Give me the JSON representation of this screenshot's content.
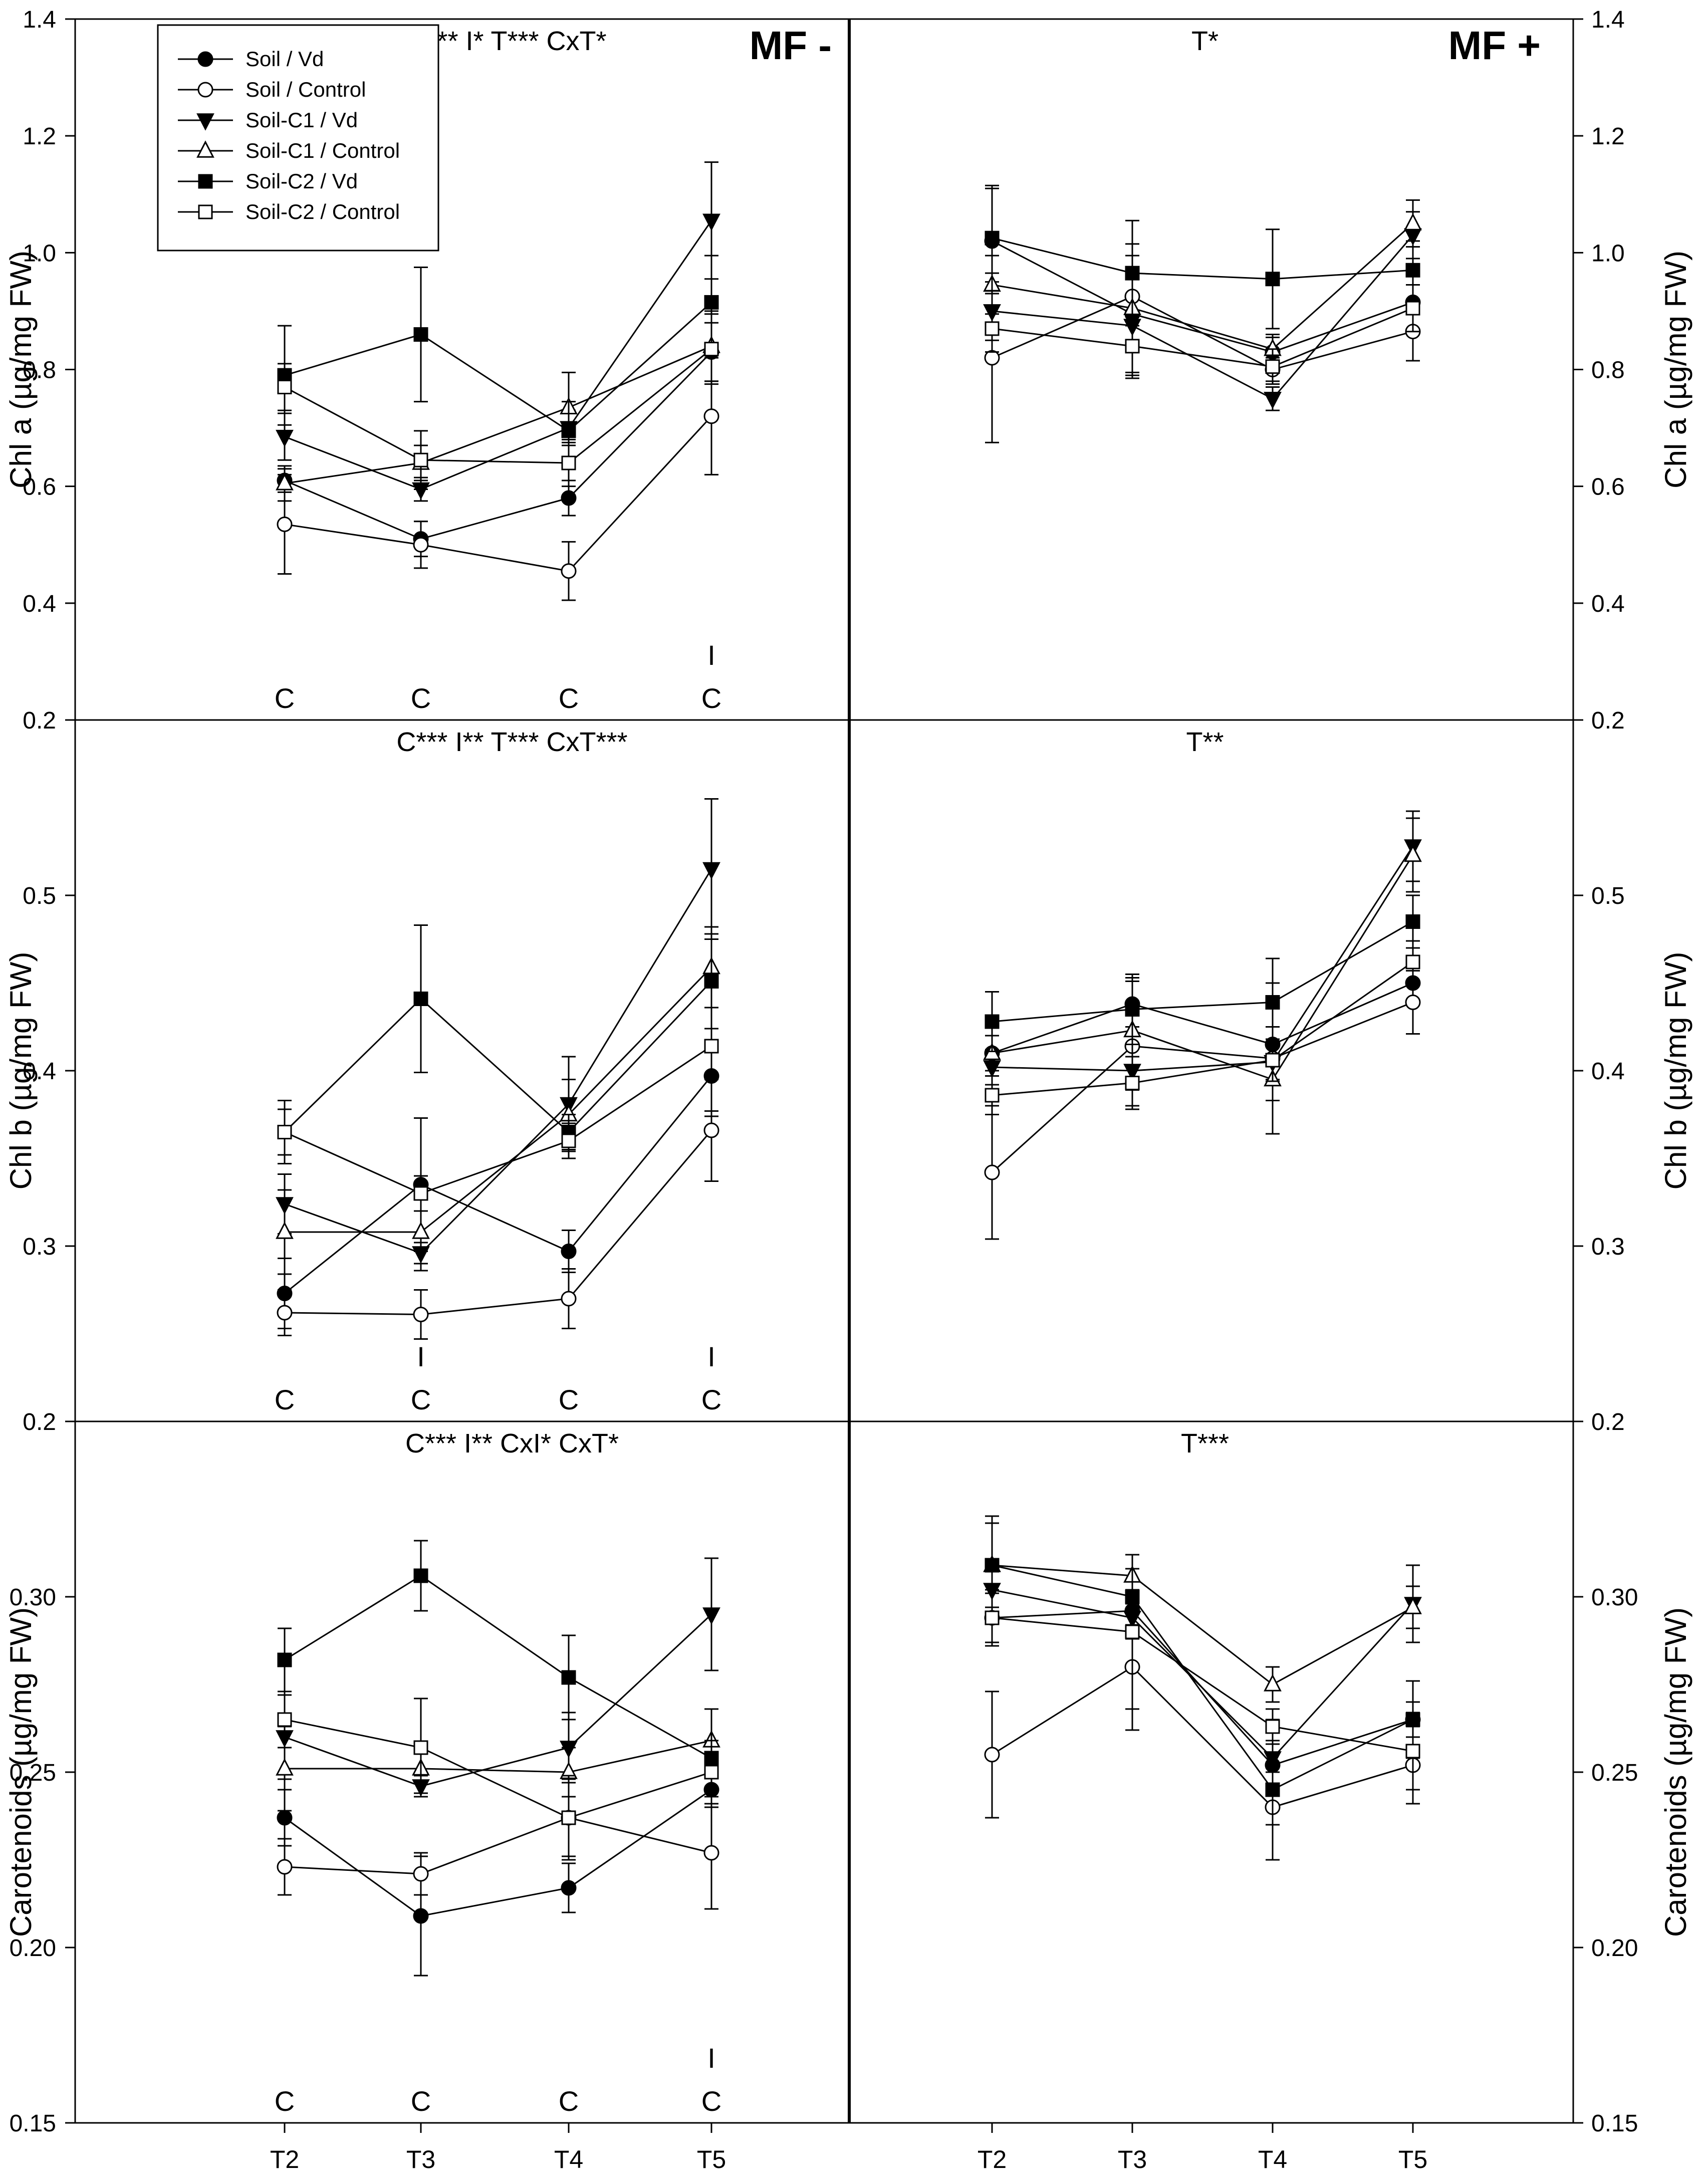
{
  "chart_data": {
    "type": "line",
    "x_categories": [
      "T2",
      "T3",
      "T4",
      "T5"
    ],
    "series_meta": [
      {
        "name": "Soil / Vd",
        "marker": "circle",
        "filled": true
      },
      {
        "name": "Soil / Control",
        "marker": "circle",
        "filled": false
      },
      {
        "name": "Soil-C1 / Vd",
        "marker": "triangle-down",
        "filled": true
      },
      {
        "name": "Soil-C1 / Control",
        "marker": "triangle-up",
        "filled": false
      },
      {
        "name": "Soil-C2 / Vd",
        "marker": "square",
        "filled": true
      },
      {
        "name": "Soil-C2 / Control",
        "marker": "square",
        "filled": false
      }
    ],
    "column_labels": [
      "MF -",
      "MF +"
    ],
    "rows": [
      {
        "ylabel": "Chl a (µg/mg FW)",
        "ylim": [
          0.2,
          1.4
        ],
        "yticks": [
          "0.2",
          "0.4",
          "0.6",
          "0.8",
          "1.0",
          "1.2",
          "1.4"
        ],
        "panels": [
          {
            "column": "MF -",
            "stats": "C**   I*   T***   CxT*",
            "annotations": [
              {
                "x": "T2",
                "lines": [
                  "C"
                ]
              },
              {
                "x": "T3",
                "lines": [
                  "C"
                ]
              },
              {
                "x": "T4",
                "lines": [
                  "C"
                ]
              },
              {
                "x": "T5",
                "lines": [
                  "I",
                  "C"
                ]
              }
            ],
            "series": [
              {
                "name": "Soil / Vd",
                "values": [
                  0.61,
                  0.51,
                  0.58,
                  0.83
                ],
                "errors": [
                  0.02,
                  0.03,
                  0.03,
                  0.05
                ]
              },
              {
                "name": "Soil / Control",
                "values": [
                  0.535,
                  0.5,
                  0.455,
                  0.72
                ],
                "errors": [
                  0.085,
                  0.04,
                  0.05,
                  0.1
                ]
              },
              {
                "name": "Soil-C1 / Vd",
                "values": [
                  0.685,
                  0.595,
                  0.7,
                  1.055
                ],
                "errors": [
                  0.04,
                  0.02,
                  0.03,
                  0.1
                ]
              },
              {
                "name": "Soil-C1 / Control",
                "values": [
                  0.605,
                  0.64,
                  0.735,
                  0.84
                ],
                "errors": [
                  0.03,
                  0.03,
                  0.06,
                  0.06
                ]
              },
              {
                "name": "Soil-C2 / Vd",
                "values": [
                  0.79,
                  0.86,
                  0.695,
                  0.915
                ],
                "errors": [
                  0.085,
                  0.115,
                  0.05,
                  0.08
                ]
              },
              {
                "name": "Soil-C2 / Control",
                "values": [
                  0.77,
                  0.645,
                  0.64,
                  0.835
                ],
                "errors": [
                  0.04,
                  0.05,
                  0.04,
                  0.06
                ]
              }
            ]
          },
          {
            "column": "MF +",
            "stats": "T*",
            "annotations": [],
            "series": [
              {
                "name": "Soil / Vd",
                "values": [
                  1.02,
                  0.895,
                  0.83,
                  0.915
                ],
                "errors": [
                  0.09,
                  0.1,
                  0.03,
                  0.05
                ]
              },
              {
                "name": "Soil / Control",
                "values": [
                  0.82,
                  0.925,
                  0.8,
                  0.865
                ],
                "errors": [
                  0.145,
                  0.09,
                  0.02,
                  0.05
                ]
              },
              {
                "name": "Soil-C1 / Vd",
                "values": [
                  0.9,
                  0.875,
                  0.75,
                  1.03
                ],
                "errors": [
                  0.05,
                  0.09,
                  0.02,
                  0.04
                ]
              },
              {
                "name": "Soil-C1 / Control",
                "values": [
                  0.945,
                  0.905,
                  0.835,
                  1.05
                ],
                "errors": [
                  0.05,
                  0.07,
                  0.02,
                  0.04
                ]
              },
              {
                "name": "Soil-C2 / Vd",
                "values": [
                  1.025,
                  0.965,
                  0.955,
                  0.97
                ],
                "errors": [
                  0.09,
                  0.09,
                  0.085,
                  0.05
                ]
              },
              {
                "name": "Soil-C2 / Control",
                "values": [
                  0.87,
                  0.84,
                  0.805,
                  0.905
                ],
                "errors": [
                  0.04,
                  0.05,
                  0.03,
                  0.04
                ]
              }
            ]
          }
        ]
      },
      {
        "ylabel": "Chl b (µg/mg FW)",
        "ylim": [
          0.2,
          0.6
        ],
        "yticks": [
          "0.2",
          "0.3",
          "0.4",
          "0.5"
        ],
        "panels": [
          {
            "column": "MF -",
            "stats": "C***   I**   T***   CxT***",
            "annotations": [
              {
                "x": "T2",
                "lines": [
                  "C"
                ]
              },
              {
                "x": "T3",
                "lines": [
                  "I",
                  "C"
                ]
              },
              {
                "x": "T4",
                "lines": [
                  "C"
                ]
              },
              {
                "x": "T5",
                "lines": [
                  "I",
                  "C"
                ]
              }
            ],
            "series": [
              {
                "name": "Soil / Vd",
                "values": [
                  0.273,
                  0.335,
                  0.297,
                  0.397
                ],
                "errors": [
                  0.02,
                  0.038,
                  0.012,
                  0.02
                ]
              },
              {
                "name": "Soil / Control",
                "values": [
                  0.262,
                  0.261,
                  0.27,
                  0.366
                ],
                "errors": [
                  0.013,
                  0.014,
                  0.017,
                  0.029
                ]
              },
              {
                "name": "Soil-C1 / Vd",
                "values": [
                  0.324,
                  0.296,
                  0.381,
                  0.515
                ],
                "errors": [
                  0.017,
                  0.006,
                  0.027,
                  0.04
                ]
              },
              {
                "name": "Soil-C1 / Control",
                "values": [
                  0.308,
                  0.308,
                  0.375,
                  0.459
                ],
                "errors": [
                  0.024,
                  0.022,
                  0.02,
                  0.023
                ]
              },
              {
                "name": "Soil-C2 / Vd",
                "values": [
                  0.365,
                  0.441,
                  0.365,
                  0.451
                ],
                "errors": [
                  0.013,
                  0.042,
                  0.01,
                  0.027
                ]
              },
              {
                "name": "Soil-C2 / Control",
                "values": [
                  0.365,
                  0.33,
                  0.36,
                  0.414
                ],
                "errors": [
                  0.018,
                  0.01,
                  0.01,
                  0.04
                ]
              }
            ]
          },
          {
            "column": "MF +",
            "stats": "T**",
            "annotations": [],
            "series": [
              {
                "name": "Soil / Vd",
                "values": [
                  0.41,
                  0.438,
                  0.415,
                  0.45
                ],
                "errors": [
                  0.01,
                  0.013,
                  0.01,
                  0.012
                ]
              },
              {
                "name": "Soil / Control",
                "values": [
                  0.342,
                  0.414,
                  0.407,
                  0.439
                ],
                "errors": [
                  0.038,
                  0.025,
                  0.043,
                  0.018
                ]
              },
              {
                "name": "Soil-C1 / Vd",
                "values": [
                  0.402,
                  0.4,
                  0.405,
                  0.528
                ],
                "errors": [
                  0.01,
                  0.02,
                  0.01,
                  0.02
                ]
              },
              {
                "name": "Soil-C1 / Control",
                "values": [
                  0.41,
                  0.423,
                  0.395,
                  0.523
                ],
                "errors": [
                  0.01,
                  0.03,
                  0.012,
                  0.021
                ]
              },
              {
                "name": "Soil-C2 / Vd",
                "values": [
                  0.428,
                  0.435,
                  0.439,
                  0.485
                ],
                "errors": [
                  0.017,
                  0.02,
                  0.025,
                  0.015
                ]
              },
              {
                "name": "Soil-C2 / Control",
                "values": [
                  0.386,
                  0.393,
                  0.406,
                  0.462
                ],
                "errors": [
                  0.011,
                  0.015,
                  0.012,
                  0.012
                ]
              }
            ]
          }
        ]
      },
      {
        "ylabel": "Carotenoids (µg/mg FW)",
        "ylim": [
          0.15,
          0.35
        ],
        "yticks": [
          "0.15",
          "0.20",
          "0.25",
          "0.30"
        ],
        "panels": [
          {
            "column": "MF -",
            "stats": "C***   I**   CxI*   CxT*",
            "annotations": [
              {
                "x": "T2",
                "lines": [
                  "C"
                ]
              },
              {
                "x": "T3",
                "lines": [
                  "C"
                ]
              },
              {
                "x": "T4",
                "lines": [
                  "C"
                ]
              },
              {
                "x": "T5",
                "lines": [
                  "I",
                  "C"
                ]
              }
            ],
            "series": [
              {
                "name": "Soil / Vd",
                "values": [
                  0.237,
                  0.209,
                  0.217,
                  0.245
                ],
                "errors": [
                  0.008,
                  0.017,
                  0.007,
                  0.005
                ]
              },
              {
                "name": "Soil / Control",
                "values": [
                  0.223,
                  0.221,
                  0.237,
                  0.227
                ],
                "errors": [
                  0.008,
                  0.006,
                  0.011,
                  0.016
                ]
              },
              {
                "name": "Soil-C1 / Vd",
                "values": [
                  0.26,
                  0.246,
                  0.257,
                  0.295
                ],
                "errors": [
                  0.012,
                  0.003,
                  0.01,
                  0.016
                ]
              },
              {
                "name": "Soil-C1 / Control",
                "values": [
                  0.251,
                  0.251,
                  0.25,
                  0.259
                ],
                "errors": [
                  0.012,
                  0.007,
                  0.007,
                  0.009
                ]
              },
              {
                "name": "Soil-C2 / Vd",
                "values": [
                  0.282,
                  0.306,
                  0.277,
                  0.254
                ],
                "errors": [
                  0.009,
                  0.01,
                  0.012,
                  0.014
                ]
              },
              {
                "name": "Soil-C2 / Control",
                "values": [
                  0.265,
                  0.257,
                  0.237,
                  0.25
                ],
                "errors": [
                  0.008,
                  0.014,
                  0.012,
                  0.009
                ]
              }
            ]
          },
          {
            "column": "MF +",
            "stats": "T***",
            "annotations": [],
            "series": [
              {
                "name": "Soil / Vd",
                "values": [
                  0.294,
                  0.296,
                  0.252,
                  0.265
                ],
                "errors": [
                  0.008,
                  0.006,
                  0.007,
                  0.005
                ]
              },
              {
                "name": "Soil / Control",
                "values": [
                  0.255,
                  0.28,
                  0.24,
                  0.252
                ],
                "errors": [
                  0.018,
                  0.018,
                  0.005,
                  0.011
                ]
              },
              {
                "name": "Soil-C1 / Vd",
                "values": [
                  0.302,
                  0.294,
                  0.254,
                  0.298
                ],
                "errors": [
                  0.008,
                  0.006,
                  0.004,
                  0.011
                ]
              },
              {
                "name": "Soil-C1 / Control",
                "values": [
                  0.309,
                  0.306,
                  0.275,
                  0.297
                ],
                "errors": [
                  0.014,
                  0.006,
                  0.005,
                  0.006
                ]
              },
              {
                "name": "Soil-C2 / Vd",
                "values": [
                  0.309,
                  0.3,
                  0.245,
                  0.265
                ],
                "errors": [
                  0.012,
                  0.008,
                  0.02,
                  0.011
                ]
              },
              {
                "name": "Soil-C2 / Control",
                "values": [
                  0.294,
                  0.29,
                  0.263,
                  0.256
                ],
                "errors": [
                  0.007,
                  0.022,
                  0.005,
                  0.011
                ]
              }
            ]
          }
        ]
      }
    ]
  }
}
